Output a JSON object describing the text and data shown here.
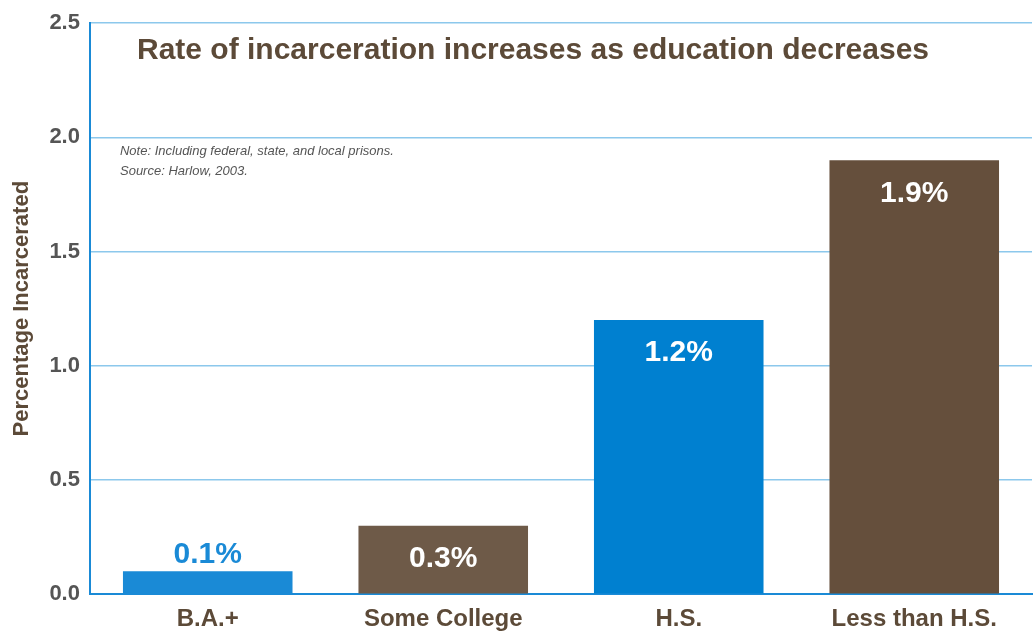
{
  "chart_data": {
    "type": "bar",
    "title": "Rate of incarceration increases as education decreases",
    "ylabel": "Percentage Incarcerated",
    "categories": [
      "B.A.+",
      "Some College",
      "H.S.",
      "Less than H.S."
    ],
    "values": [
      0.1,
      0.3,
      1.2,
      1.9
    ],
    "colors": [
      "#1a8ad6",
      "#6e5a48",
      "#0080d0",
      "#654f3c"
    ],
    "value_labels": [
      "0.1%",
      "0.3%",
      "1.2%",
      "1.9%"
    ],
    "ylim": [
      0,
      2.5
    ],
    "yticks": [
      {
        "value": 0,
        "label": "0.0"
      },
      0.5,
      {
        "value": 1,
        "label": "1.0"
      },
      1.5,
      {
        "value": 2,
        "label": "2.0"
      },
      2.5
    ],
    "grid": "y",
    "legend": false,
    "annotations": [
      "Note: Including federal, state, and local prisons.",
      "Source: Harlow, 2003."
    ]
  }
}
